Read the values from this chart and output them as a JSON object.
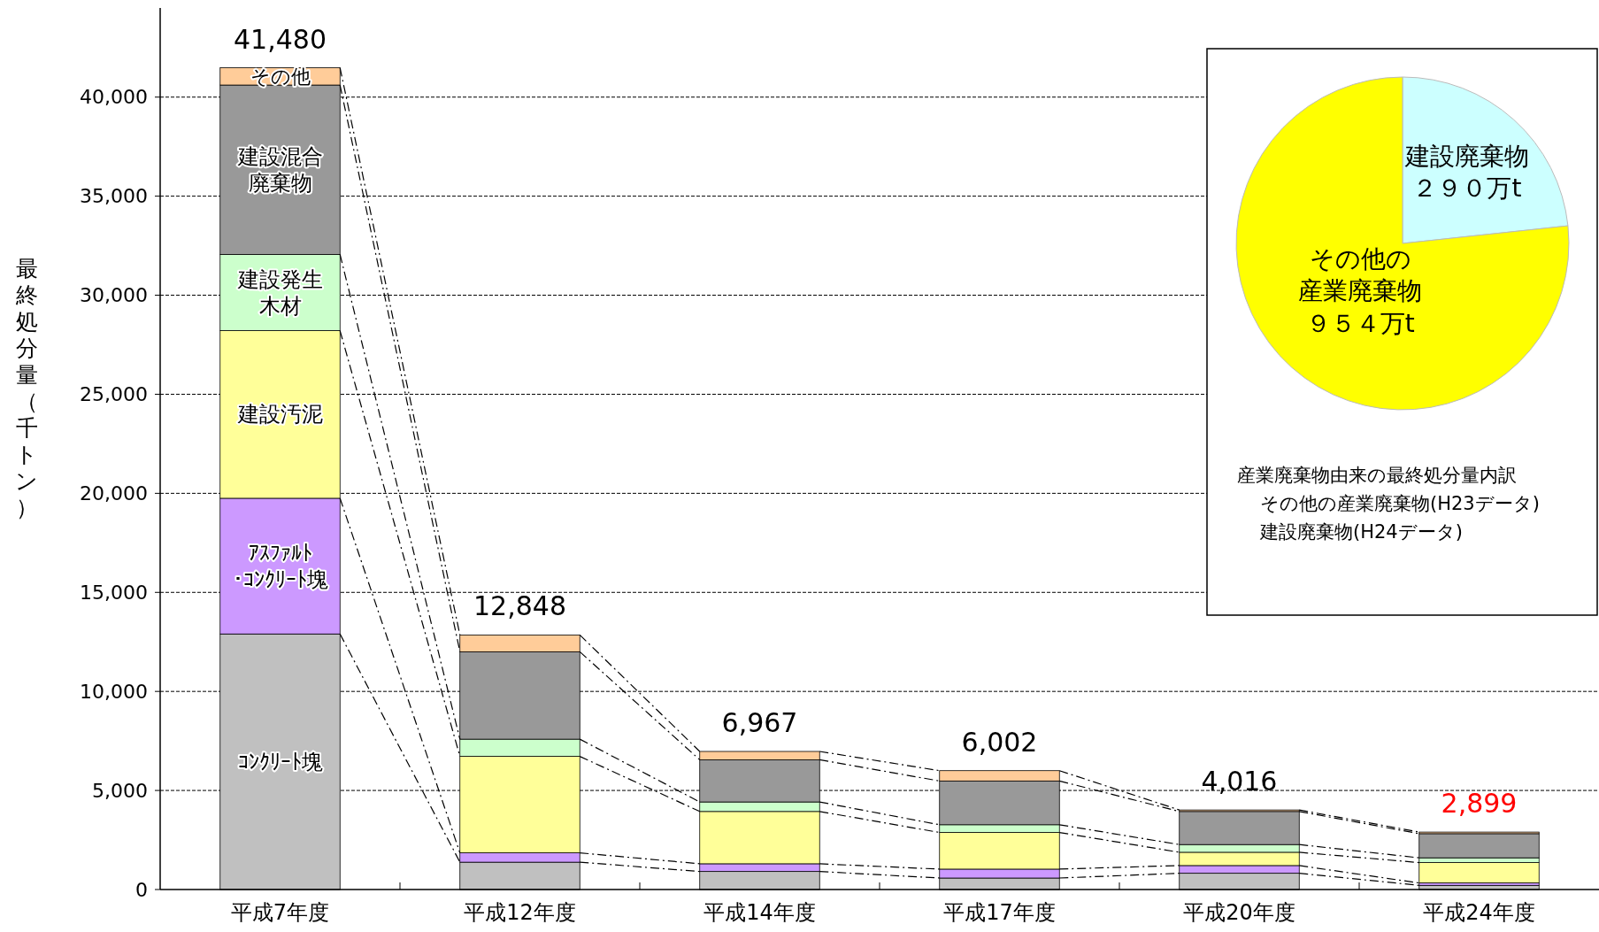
{
  "chart_data": [
    {
      "type": "bar",
      "stacked": true,
      "ylabel": "最終処分量（千トン）",
      "categories": [
        "平成7年度",
        "平成12年度",
        "平成14年度",
        "平成17年度",
        "平成20年度",
        "平成24年度"
      ],
      "series": [
        {
          "name": "ｺﾝｸﾘｰﾄ塊",
          "color": "#c0c0c0",
          "values": [
            12900,
            1380,
            910,
            580,
            820,
            210
          ]
        },
        {
          "name": "ｱｽﾌｧﾙﾄ･ｺﾝｸﾘｰﾄ塊",
          "color": "#cc99ff",
          "values": [
            6850,
            470,
            390,
            450,
            390,
            120
          ]
        },
        {
          "name": "建設汚泥",
          "color": "#ffff99",
          "values": [
            8460,
            4870,
            2640,
            1850,
            670,
            1030
          ]
        },
        {
          "name": "建設発生木材",
          "color": "#ccffcc",
          "values": [
            3850,
            870,
            480,
            390,
            390,
            240
          ]
        },
        {
          "name": "建設混合廃棄物",
          "color": "#999999",
          "values": [
            8550,
            4410,
            2130,
            2210,
            1670,
            1220
          ]
        },
        {
          "name": "その他",
          "color": "#ffcc99",
          "values": [
            870,
            850,
            420,
            520,
            76,
            80
          ]
        }
      ],
      "totals": [
        "41,480",
        "12,848",
        "6,967",
        "6,002",
        "4,016",
        "2,899"
      ],
      "ylim": [
        0,
        44500
      ],
      "yticks": [
        {
          "value": 0,
          "label": "0"
        },
        {
          "value": 5000,
          "label": "5,000"
        },
        {
          "value": 10000,
          "label": "10,000"
        },
        {
          "value": 15000,
          "label": "15,000"
        },
        {
          "value": 20000,
          "label": "20,000"
        },
        {
          "value": 25000,
          "label": "25,000"
        },
        {
          "value": 30000,
          "label": "30,000"
        },
        {
          "value": 35000,
          "label": "35,000"
        },
        {
          "value": 40000,
          "label": "40,000"
        }
      ],
      "grid": "y"
    },
    {
      "type": "pie",
      "categories": [
        "建設廃棄物",
        "その他の産業廃棄物"
      ],
      "values": [
        290,
        954
      ],
      "value_labels": [
        "２９０万t",
        "９５４万t"
      ],
      "colors": [
        "#ccffff",
        "#ffff00"
      ],
      "annotations": [
        "産業廃棄物由来の最終処分量内訳",
        "その他の産業廃棄物(H23データ)",
        "建設廃棄物(H24データ)"
      ]
    }
  ]
}
